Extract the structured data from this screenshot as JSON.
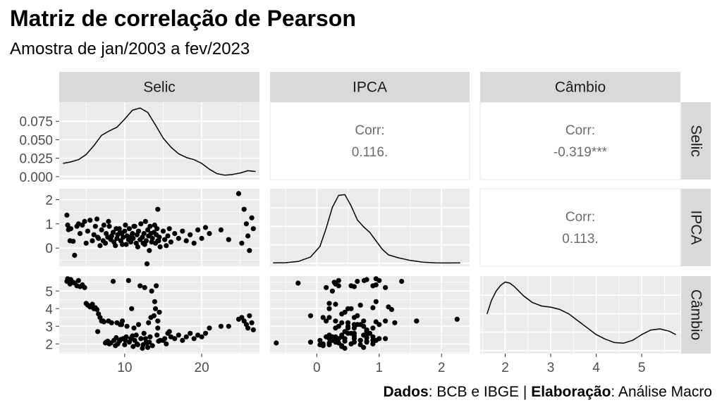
{
  "title": "Matriz de correlação de Pearson",
  "subtitle": "Amostra de jan/2003 a fev/2023",
  "caption": {
    "dados_label": "Dados",
    "dados_text": ": BCB e IBGE | ",
    "elab_label": "Elaboração",
    "elab_text": ": Análise Macro"
  },
  "chart_data": {
    "type": "scatter",
    "variables": [
      "Selic",
      "IPCA",
      "Câmbio"
    ],
    "correlations": [
      {
        "row": "Selic",
        "col": "IPCA",
        "label": "Corr:",
        "value": "0.116."
      },
      {
        "row": "Selic",
        "col": "Câmbio",
        "label": "Corr:",
        "value": "-0.319***"
      },
      {
        "row": "IPCA",
        "col": "Câmbio",
        "label": "Corr:",
        "value": "0.113."
      }
    ],
    "axes": {
      "Selic": {
        "range": [
          1.5,
          27.5
        ],
        "ticks": [
          10,
          20
        ]
      },
      "IPCA": {
        "range": [
          -0.75,
          2.45
        ],
        "ticks": [
          0,
          1,
          2
        ]
      },
      "Câmbio": {
        "range": [
          1.45,
          5.85
        ],
        "ticks": [
          2,
          3,
          4,
          5
        ]
      }
    },
    "density_y_ticks": [
      "0.000",
      "0.025",
      "0.050",
      "0.075"
    ],
    "density_y_range": [
      -0.004,
      0.101
    ],
    "density": {
      "Selic": {
        "x": [
          2,
          3,
          4,
          5,
          6,
          7,
          8,
          9,
          10,
          11,
          12,
          13,
          14,
          15,
          16,
          17,
          18,
          19,
          20,
          21,
          22,
          23,
          24,
          25,
          26,
          27
        ],
        "y": [
          0.018,
          0.02,
          0.023,
          0.03,
          0.042,
          0.056,
          0.062,
          0.067,
          0.078,
          0.09,
          0.093,
          0.087,
          0.07,
          0.052,
          0.04,
          0.031,
          0.026,
          0.023,
          0.018,
          0.01,
          0.004,
          0.002,
          0.003,
          0.005,
          0.008,
          0.007
        ]
      },
      "IPCA": {
        "x": [
          -0.7,
          -0.5,
          -0.3,
          -0.1,
          0.05,
          0.15,
          0.25,
          0.35,
          0.45,
          0.55,
          0.65,
          0.75,
          0.85,
          0.95,
          1.05,
          1.15,
          1.3,
          1.5,
          1.7,
          1.9,
          2.1,
          2.3
        ],
        "y": [
          0.005,
          0.008,
          0.025,
          0.09,
          0.24,
          0.5,
          0.8,
          0.97,
          0.98,
          0.82,
          0.62,
          0.52,
          0.44,
          0.32,
          0.2,
          0.12,
          0.08,
          0.04,
          0.015,
          0.006,
          0.004,
          0.005
        ]
      },
      "Câmbio": {
        "x": [
          1.6,
          1.7,
          1.8,
          1.9,
          2.0,
          2.1,
          2.2,
          2.4,
          2.6,
          2.8,
          3.0,
          3.2,
          3.4,
          3.6,
          3.8,
          4.0,
          4.2,
          4.4,
          4.6,
          4.8,
          5.0,
          5.2,
          5.4,
          5.6,
          5.75
        ],
        "y": [
          0.32,
          0.44,
          0.52,
          0.57,
          0.6,
          0.59,
          0.56,
          0.48,
          0.42,
          0.39,
          0.38,
          0.36,
          0.32,
          0.26,
          0.2,
          0.14,
          0.1,
          0.07,
          0.065,
          0.09,
          0.14,
          0.18,
          0.19,
          0.17,
          0.14
        ]
      }
    },
    "points": [
      [
        2.5,
        1.36,
        5.55
      ],
      [
        2.6,
        0.95,
        5.7
      ],
      [
        2.7,
        0.76,
        5.6
      ],
      [
        2.9,
        0.3,
        5.4
      ],
      [
        3.0,
        0.8,
        5.65
      ],
      [
        3.3,
        0.28,
        5.5
      ],
      [
        3.5,
        -0.3,
        5.45
      ],
      [
        3.8,
        0.9,
        5.3
      ],
      [
        4.0,
        1.0,
        5.6
      ],
      [
        4.2,
        0.6,
        5.25
      ],
      [
        4.5,
        0.95,
        5.35
      ],
      [
        4.8,
        1.1,
        5.2
      ],
      [
        5.0,
        0.2,
        4.3
      ],
      [
        5.2,
        0.7,
        4.2
      ],
      [
        5.5,
        1.15,
        4.1
      ],
      [
        5.8,
        0.3,
        4.25
      ],
      [
        6.0,
        0.55,
        4.0
      ],
      [
        6.2,
        0.9,
        4.05
      ],
      [
        6.4,
        1.2,
        3.95
      ],
      [
        6.6,
        0.4,
        3.7
      ],
      [
        6.8,
        0.1,
        3.5
      ],
      [
        7.0,
        0.75,
        3.3
      ],
      [
        7.2,
        0.3,
        3.3
      ],
      [
        7.3,
        0.95,
        3.25
      ],
      [
        7.5,
        0.2,
        2.05
      ],
      [
        7.6,
        0.6,
        2.1
      ],
      [
        7.8,
        0.45,
        2.15
      ],
      [
        8.0,
        0.9,
        2.0
      ],
      [
        8.2,
        0.35,
        2.05
      ],
      [
        8.3,
        0.5,
        3.2
      ],
      [
        8.5,
        0.65,
        5.55
      ],
      [
        8.6,
        0.25,
        2.2
      ],
      [
        8.8,
        0.1,
        1.9
      ],
      [
        9.0,
        0.4,
        3.2
      ],
      [
        9.1,
        0.55,
        2.0
      ],
      [
        9.3,
        0.8,
        2.15
      ],
      [
        9.5,
        0.3,
        2.25
      ],
      [
        9.6,
        0.6,
        3.1
      ],
      [
        9.8,
        0.45,
        2.3
      ],
      [
        10.0,
        0.7,
        1.95
      ],
      [
        10.2,
        0.15,
        2.4
      ],
      [
        10.3,
        0.5,
        3.0
      ],
      [
        10.5,
        0.35,
        5.6
      ],
      [
        10.6,
        0.8,
        2.1
      ],
      [
        10.8,
        0.25,
        2.3
      ],
      [
        11.0,
        0.6,
        2.45
      ],
      [
        11.1,
        0.4,
        1.85
      ],
      [
        11.3,
        0.9,
        2.2
      ],
      [
        11.5,
        0.2,
        2.5
      ],
      [
        11.6,
        0.55,
        2.0
      ],
      [
        11.8,
        0.7,
        3.1
      ],
      [
        12.0,
        0.35,
        5.3
      ],
      [
        12.1,
        1.0,
        2.3
      ],
      [
        12.3,
        0.45,
        1.75
      ],
      [
        12.5,
        0.6,
        2.6
      ],
      [
        12.6,
        0.15,
        5.2
      ],
      [
        12.8,
        0.3,
        2.1
      ],
      [
        13.0,
        0.75,
        1.8
      ],
      [
        13.1,
        0.5,
        3.2
      ],
      [
        13.3,
        0.9,
        2.4
      ],
      [
        13.5,
        0.25,
        5.0
      ],
      [
        13.6,
        0.4,
        1.9
      ],
      [
        13.8,
        0.65,
        3.6
      ],
      [
        14.0,
        0.2,
        4.0
      ],
      [
        14.1,
        0.55,
        5.3
      ],
      [
        14.2,
        0.8,
        2.5
      ],
      [
        14.3,
        0.3,
        2.9
      ],
      [
        14.3,
        1.6,
        3.3
      ],
      [
        14.5,
        0.45,
        3.8
      ],
      [
        15.0,
        0.7,
        2.2
      ],
      [
        15.2,
        0.35,
        2.3
      ],
      [
        15.4,
        0.1,
        2.0
      ],
      [
        15.6,
        0.5,
        2.6
      ],
      [
        15.8,
        0.8,
        2.7
      ],
      [
        16.0,
        0.25,
        2.4
      ],
      [
        16.5,
        0.6,
        2.3
      ],
      [
        17.0,
        0.4,
        2.5
      ],
      [
        17.5,
        0.7,
        2.2
      ],
      [
        18.0,
        0.3,
        2.4
      ],
      [
        18.5,
        0.55,
        2.6
      ],
      [
        19.0,
        0.2,
        2.3
      ],
      [
        19.5,
        0.75,
        2.5
      ],
      [
        20.0,
        0.4,
        2.4
      ],
      [
        20.5,
        0.85,
        2.6
      ],
      [
        21.0,
        0.6,
        2.9
      ],
      [
        22.5,
        0.75,
        3.0
      ],
      [
        23.5,
        0.35,
        3.0
      ],
      [
        24.8,
        2.25,
        3.4
      ],
      [
        25.2,
        0.2,
        3.5
      ],
      [
        25.5,
        1.6,
        3.3
      ],
      [
        25.8,
        1.0,
        3.1
      ],
      [
        26.0,
        0.5,
        2.9
      ],
      [
        26.2,
        -0.1,
        3.6
      ],
      [
        26.5,
        1.25,
        3.2
      ],
      [
        26.7,
        0.8,
        2.8
      ],
      [
        11.2,
        0.9,
        2.9
      ],
      [
        9.4,
        0.65,
        3.1
      ],
      [
        12.7,
        1.1,
        2.3
      ],
      [
        13.9,
        0.95,
        4.4
      ],
      [
        7.9,
        1.1,
        3.3
      ],
      [
        10.9,
        0.5,
        4.0
      ],
      [
        13.2,
        -0.1,
        2.1
      ],
      [
        11.7,
        0.05,
        1.95
      ],
      [
        14.4,
        0.3,
        2.15
      ],
      [
        12.9,
        -0.65,
        2.05
      ],
      [
        9.7,
        0.15,
        3.3
      ],
      [
        8.9,
        0.8,
        2.35
      ],
      [
        13.4,
        0.6,
        3.5
      ],
      [
        6.5,
        0.45,
        2.7
      ],
      [
        14.6,
        0.05,
        2.2
      ],
      [
        10.1,
        0.95,
        2.2
      ],
      [
        12.4,
        0.2,
        1.95
      ]
    ]
  }
}
